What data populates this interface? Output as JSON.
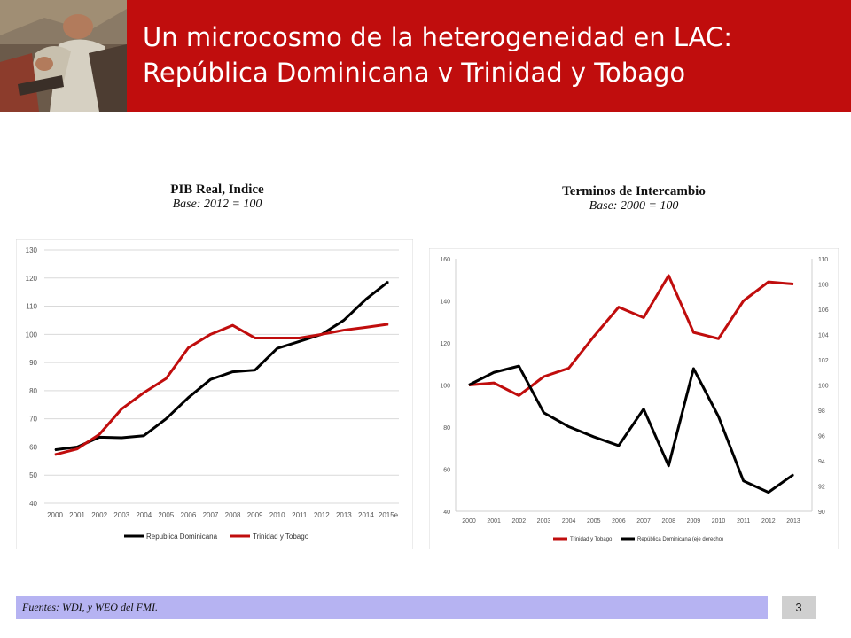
{
  "slide": {
    "title_line1": "Un microcosmo de la heterogeneidad en LAC:",
    "title_line2": "República Dominicana v Trinidad y Tobago",
    "footer_source": "Fuentes: WDI, y WEO del FMI.",
    "page_number": "3",
    "accent_color": "#c00d0d",
    "footer_color": "#b6b3f2"
  },
  "chart_data": [
    {
      "type": "line",
      "title": "PIB Real, Indice",
      "subtitle": "Base: 2012 = 100",
      "categories": [
        "2000",
        "2001",
        "2002",
        "2003",
        "2004",
        "2005",
        "2006",
        "2007",
        "2008",
        "2009",
        "2010",
        "2011",
        "2012",
        "2013",
        "2014",
        "2015e"
      ],
      "ylim": [
        40,
        130
      ],
      "yticks": [
        40,
        50,
        60,
        70,
        80,
        90,
        100,
        110,
        120,
        130
      ],
      "grid": true,
      "legend_position": "bottom",
      "series": [
        {
          "name": "Republica Dominicana",
          "color": "#000000",
          "values": [
            59,
            60,
            63.5,
            63.3,
            64,
            70,
            77.5,
            84,
            86.7,
            87.3,
            95,
            97.5,
            100,
            105,
            112.5,
            118.7
          ]
        },
        {
          "name": "Trinidad y Tobago",
          "color": "#c00d0d",
          "values": [
            57.3,
            59.3,
            64.5,
            73.5,
            79.3,
            84.3,
            95.2,
            100,
            103.2,
            98.7,
            98.7,
            98.7,
            100,
            101.5,
            102.5,
            103.6
          ]
        }
      ]
    },
    {
      "type": "line",
      "title": "Terminos de Intercambio",
      "subtitle": "Base: 2000 = 100",
      "categories": [
        "2000",
        "2001",
        "2002",
        "2003",
        "2004",
        "2005",
        "2006",
        "2007",
        "2008",
        "2009",
        "2010",
        "2011",
        "2012",
        "2013"
      ],
      "ylim": [
        40,
        160
      ],
      "yticks": [
        40,
        60,
        80,
        100,
        120,
        140,
        160
      ],
      "y2lim": [
        90,
        110
      ],
      "y2ticks": [
        90,
        92,
        94,
        96,
        98,
        100,
        102,
        104,
        106,
        108,
        110
      ],
      "grid": false,
      "legend_position": "bottom",
      "series": [
        {
          "name": "Trinidad y Tobago",
          "color": "#c00d0d",
          "axis": "left",
          "values": [
            100,
            101,
            95,
            104,
            108,
            123,
            137,
            132,
            152,
            125,
            122,
            140,
            149,
            148
          ]
        },
        {
          "name": "República Dominicana (eje derecho)",
          "color": "#000000",
          "axis": "right",
          "values": [
            100,
            101,
            101.5,
            97.8,
            96.7,
            95.9,
            95.2,
            98.1,
            93.6,
            101.3,
            97.5,
            92.4,
            91.5,
            92.9
          ]
        }
      ]
    }
  ]
}
